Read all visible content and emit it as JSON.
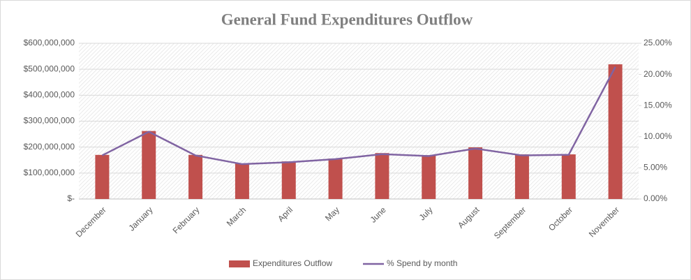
{
  "chart_data": {
    "type": "bar-line",
    "title": "General Fund Expenditures Outflow",
    "categories": [
      "December",
      "January",
      "February",
      "March",
      "April",
      "May",
      "June",
      "July",
      "August",
      "September",
      "October",
      "November"
    ],
    "series": [
      {
        "name": "Expenditures Outflow",
        "type": "bar",
        "color": "#c0504d",
        "axis": "y",
        "values": [
          170000000,
          262000000,
          170000000,
          137000000,
          145000000,
          156000000,
          177000000,
          169000000,
          199000000,
          172000000,
          172000000,
          519000000
        ]
      },
      {
        "name": "% Spend by month",
        "type": "line",
        "color": "#8064a2",
        "axis": "y2",
        "values": [
          7.0,
          10.8,
          7.0,
          5.6,
          5.9,
          6.4,
          7.2,
          6.9,
          8.1,
          7.0,
          7.1,
          21.2
        ]
      }
    ],
    "ylim": [
      0,
      600000000
    ],
    "yticks": [
      {
        "value": 0,
        "label": "$-"
      },
      {
        "value": 100000000,
        "label": "$100,000,000"
      },
      {
        "value": 200000000,
        "label": "$200,000,000"
      },
      {
        "value": 300000000,
        "label": "$300,000,000"
      },
      {
        "value": 400000000,
        "label": "$400,000,000"
      },
      {
        "value": 500000000,
        "label": "$500,000,000"
      },
      {
        "value": 600000000,
        "label": "$600,000,000"
      }
    ],
    "y2lim": [
      0,
      25
    ],
    "y2ticks": [
      {
        "value": 0,
        "label": "0.00%"
      },
      {
        "value": 5,
        "label": "5.00%"
      },
      {
        "value": 10,
        "label": "10.00%"
      },
      {
        "value": 15,
        "label": "15.00%"
      },
      {
        "value": 20,
        "label": "20.00%"
      },
      {
        "value": 25,
        "label": "25.00%"
      }
    ],
    "grid": true,
    "legend": "bottom"
  }
}
